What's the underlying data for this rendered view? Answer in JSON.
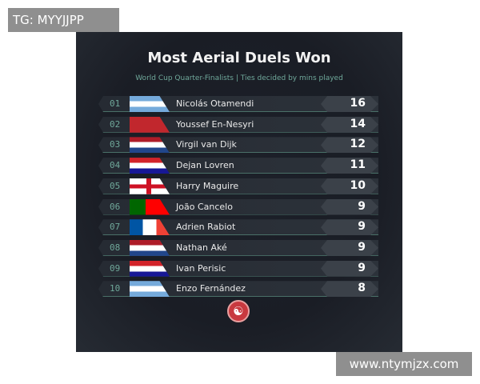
{
  "watermarks": {
    "top_left": "TG: MYYJJPP",
    "bottom_right": "www.ntymjzx.com"
  },
  "title": "Most Aerial Duels Won",
  "subtitle": "World Cup Quarter-Finalists | Ties decided by mins played",
  "colors": {
    "background": "#1a1d25",
    "accent": "#6fa89a",
    "logo": "#c8393f"
  },
  "rows": [
    {
      "rank": "01",
      "flag": "argentina",
      "name": "Nicolás Otamendi",
      "value": "16"
    },
    {
      "rank": "02",
      "flag": "morocco",
      "name": "Youssef En-Nesyri",
      "value": "14"
    },
    {
      "rank": "03",
      "flag": "netherlands",
      "name": "Virgil van Dijk",
      "value": "12"
    },
    {
      "rank": "04",
      "flag": "croatia",
      "name": "Dejan Lovren",
      "value": "11"
    },
    {
      "rank": "05",
      "flag": "england",
      "name": "Harry Maguire",
      "value": "10"
    },
    {
      "rank": "06",
      "flag": "portugal",
      "name": "João Cancelo",
      "value": "9"
    },
    {
      "rank": "07",
      "flag": "france",
      "name": "Adrien Rabiot",
      "value": "9"
    },
    {
      "rank": "08",
      "flag": "netherlands",
      "name": "Nathan Aké",
      "value": "9"
    },
    {
      "rank": "09",
      "flag": "croatia",
      "name": "Ivan Perisic",
      "value": "9"
    },
    {
      "rank": "10",
      "flag": "argentina",
      "name": "Enzo Fernández",
      "value": "8"
    }
  ],
  "logo_icon": "brand-logo-icon"
}
